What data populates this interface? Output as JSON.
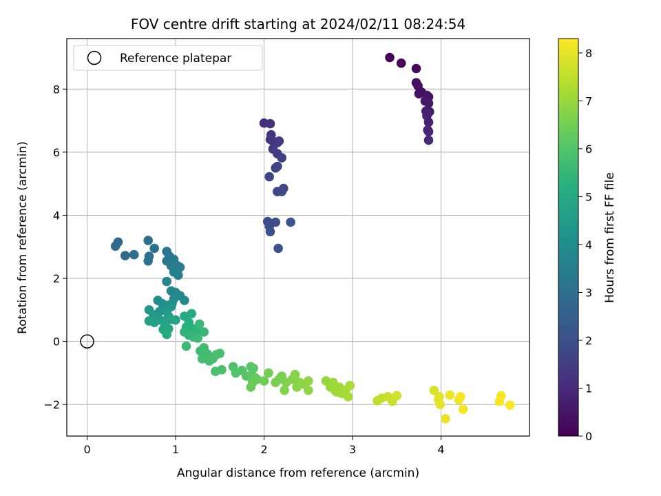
{
  "chart_data": {
    "type": "scatter",
    "title": "FOV centre drift starting at 2024/02/11 08:24:54",
    "xlabel": "Angular distance from reference (arcmin)",
    "ylabel": "Rotation from reference (arcmin)",
    "xlim": [
      -0.23,
      5.0
    ],
    "ylim": [
      -3.0,
      9.6
    ],
    "xticks": [
      0,
      1,
      2,
      3,
      4
    ],
    "yticks": [
      -2,
      0,
      2,
      4,
      6,
      8
    ],
    "grid": true,
    "legend": {
      "placement": "upper-left",
      "entries": [
        "Reference platepar"
      ]
    },
    "colorbar": {
      "label": "Hours from first FF file",
      "min": 0,
      "max": 8.3,
      "ticks": [
        0,
        1,
        2,
        3,
        4,
        5,
        6,
        7,
        8
      ],
      "colormap": "viridis"
    },
    "reference_point": {
      "x": 0,
      "y": 0
    },
    "points": [
      [
        3.42,
        9.0,
        0.05
      ],
      [
        3.55,
        8.82,
        0.1
      ],
      [
        3.72,
        8.65,
        0.18
      ],
      [
        3.72,
        8.2,
        0.25
      ],
      [
        3.74,
        8.1,
        0.3
      ],
      [
        3.75,
        7.85,
        0.35
      ],
      [
        3.78,
        7.9,
        0.4
      ],
      [
        3.84,
        7.8,
        0.45
      ],
      [
        3.86,
        7.75,
        0.5
      ],
      [
        3.82,
        7.62,
        0.55
      ],
      [
        3.86,
        7.55,
        0.6
      ],
      [
        3.83,
        7.3,
        0.65
      ],
      [
        3.87,
        7.28,
        0.7
      ],
      [
        3.84,
        7.15,
        0.75
      ],
      [
        3.86,
        6.95,
        0.8
      ],
      [
        3.85,
        6.7,
        0.85
      ],
      [
        3.86,
        6.65,
        0.9
      ],
      [
        3.86,
        6.38,
        0.95
      ],
      [
        2.0,
        6.92,
        1.1
      ],
      [
        2.07,
        6.9,
        1.15
      ],
      [
        2.08,
        6.55,
        1.2
      ],
      [
        2.1,
        6.35,
        1.25
      ],
      [
        2.07,
        6.4,
        1.3
      ],
      [
        2.15,
        6.3,
        1.35
      ],
      [
        2.17,
        6.35,
        1.4
      ],
      [
        2.1,
        6.1,
        1.45
      ],
      [
        2.15,
        5.95,
        1.5
      ],
      [
        2.2,
        5.82,
        1.55
      ],
      [
        2.13,
        5.5,
        1.6
      ],
      [
        2.15,
        5.55,
        1.65
      ],
      [
        2.06,
        5.22,
        1.7
      ],
      [
        2.15,
        4.75,
        1.75
      ],
      [
        2.2,
        4.75,
        1.8
      ],
      [
        2.22,
        4.85,
        1.85
      ],
      [
        2.04,
        3.8,
        1.9
      ],
      [
        2.06,
        3.65,
        1.95
      ],
      [
        2.13,
        3.78,
        2.0
      ],
      [
        2.07,
        3.48,
        2.05
      ],
      [
        2.3,
        3.78,
        2.1
      ],
      [
        2.16,
        2.95,
        2.15
      ],
      [
        0.35,
        3.15,
        2.8
      ],
      [
        0.32,
        3.02,
        2.85
      ],
      [
        0.43,
        2.72,
        2.9
      ],
      [
        0.53,
        2.75,
        2.95
      ],
      [
        0.69,
        3.2,
        3.0
      ],
      [
        0.76,
        2.95,
        3.05
      ],
      [
        0.7,
        2.7,
        3.1
      ],
      [
        0.69,
        2.55,
        3.15
      ],
      [
        0.9,
        2.85,
        3.2
      ],
      [
        0.93,
        2.7,
        3.25
      ],
      [
        0.9,
        2.55,
        3.3
      ],
      [
        0.98,
        2.6,
        3.35
      ],
      [
        0.95,
        2.4,
        3.4
      ],
      [
        1.02,
        2.4,
        3.45
      ],
      [
        1.05,
        2.35,
        3.5
      ],
      [
        0.98,
        2.2,
        3.55
      ],
      [
        1.03,
        2.1,
        3.6
      ],
      [
        0.9,
        1.9,
        3.7
      ],
      [
        0.95,
        1.6,
        3.75
      ],
      [
        1.0,
        1.55,
        3.8
      ],
      [
        1.05,
        1.45,
        3.85
      ],
      [
        0.98,
        1.35,
        3.9
      ],
      [
        1.1,
        1.3,
        3.95
      ],
      [
        0.96,
        1.2,
        4.0
      ],
      [
        0.8,
        1.3,
        4.05
      ],
      [
        0.85,
        1.2,
        4.1
      ],
      [
        0.92,
        1.15,
        4.15
      ],
      [
        0.88,
        1.05,
        4.2
      ],
      [
        0.95,
        1.1,
        4.25
      ],
      [
        0.82,
        0.95,
        4.3
      ],
      [
        0.7,
        1.0,
        4.35
      ],
      [
        0.75,
        0.85,
        4.4
      ],
      [
        0.9,
        0.95,
        4.45
      ],
      [
        0.8,
        0.75,
        4.5
      ],
      [
        0.92,
        0.8,
        4.55
      ],
      [
        0.85,
        0.65,
        4.6
      ],
      [
        0.7,
        0.65,
        4.65
      ],
      [
        0.76,
        0.6,
        4.7
      ],
      [
        0.95,
        0.7,
        4.75
      ],
      [
        1.0,
        0.68,
        4.8
      ],
      [
        0.88,
        0.55,
        4.85
      ],
      [
        0.92,
        0.4,
        4.9
      ],
      [
        0.86,
        0.38,
        4.95
      ],
      [
        0.9,
        0.22,
        5.0
      ],
      [
        1.1,
        0.8,
        5.05
      ],
      [
        1.18,
        0.88,
        5.1
      ],
      [
        1.15,
        0.6,
        5.15
      ],
      [
        1.12,
        0.45,
        5.2
      ],
      [
        1.2,
        0.4,
        5.25
      ],
      [
        1.1,
        0.3,
        5.3
      ],
      [
        1.25,
        0.35,
        5.35
      ],
      [
        1.15,
        0.2,
        5.4
      ],
      [
        1.2,
        0.15,
        5.45
      ],
      [
        1.32,
        0.3,
        5.5
      ],
      [
        1.27,
        0.55,
        5.55
      ],
      [
        1.12,
        -0.15,
        5.6
      ],
      [
        1.25,
        0.1,
        5.62
      ],
      [
        1.28,
        -0.3,
        5.65
      ],
      [
        1.32,
        -0.2,
        5.68
      ],
      [
        1.36,
        -0.4,
        5.7
      ],
      [
        1.3,
        -0.55,
        5.72
      ],
      [
        1.38,
        -0.62,
        5.75
      ],
      [
        1.42,
        -0.55,
        5.78
      ],
      [
        1.46,
        -0.42,
        5.8
      ],
      [
        1.5,
        -0.38,
        5.82
      ],
      [
        1.45,
        -0.95,
        5.85
      ],
      [
        1.52,
        -0.9,
        5.88
      ],
      [
        1.65,
        -0.8,
        5.9
      ],
      [
        1.68,
        -1.0,
        5.95
      ],
      [
        1.75,
        -0.92,
        6.0
      ],
      [
        1.8,
        -1.1,
        6.05
      ],
      [
        1.85,
        -0.8,
        6.1
      ],
      [
        1.88,
        -0.85,
        6.15
      ],
      [
        1.86,
        -1.05,
        6.2
      ],
      [
        1.9,
        -1.15,
        6.25
      ],
      [
        1.92,
        -1.2,
        6.3
      ],
      [
        1.87,
        -1.3,
        6.35
      ],
      [
        1.85,
        -1.45,
        6.4
      ],
      [
        2.0,
        -1.25,
        6.45
      ],
      [
        2.05,
        -1.0,
        6.5
      ],
      [
        2.13,
        -1.3,
        6.55
      ],
      [
        2.17,
        -1.2,
        6.6
      ],
      [
        2.2,
        -1.1,
        6.62
      ],
      [
        2.25,
        -1.3,
        6.65
      ],
      [
        2.23,
        -1.55,
        6.7
      ],
      [
        2.32,
        -1.2,
        6.72
      ],
      [
        2.35,
        -1.05,
        6.75
      ],
      [
        2.4,
        -1.3,
        6.78
      ],
      [
        2.37,
        -1.45,
        6.8
      ],
      [
        2.45,
        -1.35,
        6.82
      ],
      [
        2.5,
        -1.25,
        6.85
      ],
      [
        2.5,
        -1.55,
        6.88
      ],
      [
        2.7,
        -1.25,
        6.95
      ],
      [
        2.75,
        -1.45,
        7.0
      ],
      [
        2.78,
        -1.3,
        7.02
      ],
      [
        2.8,
        -1.55,
        7.05
      ],
      [
        2.82,
        -1.6,
        7.08
      ],
      [
        2.85,
        -1.45,
        7.1
      ],
      [
        2.88,
        -1.65,
        7.12
      ],
      [
        2.92,
        -1.55,
        7.15
      ],
      [
        2.95,
        -1.75,
        7.18
      ],
      [
        2.97,
        -1.4,
        7.2
      ],
      [
        3.28,
        -1.88,
        7.5
      ],
      [
        3.33,
        -1.8,
        7.55
      ],
      [
        3.4,
        -1.75,
        7.6
      ],
      [
        3.45,
        -1.9,
        7.65
      ],
      [
        3.5,
        -1.72,
        7.7
      ],
      [
        3.92,
        -1.55,
        7.85
      ],
      [
        3.97,
        -1.85,
        7.9
      ],
      [
        3.98,
        -1.75,
        7.95
      ],
      [
        3.99,
        -2.0,
        8.0
      ],
      [
        4.05,
        -2.45,
        8.05
      ],
      [
        4.1,
        -1.7,
        8.1
      ],
      [
        4.2,
        -1.85,
        8.15
      ],
      [
        4.22,
        -1.75,
        8.18
      ],
      [
        4.25,
        -2.15,
        8.2
      ],
      [
        4.66,
        -1.9,
        8.22
      ],
      [
        4.68,
        -1.72,
        8.25
      ],
      [
        4.78,
        -2.02,
        8.28
      ]
    ]
  }
}
